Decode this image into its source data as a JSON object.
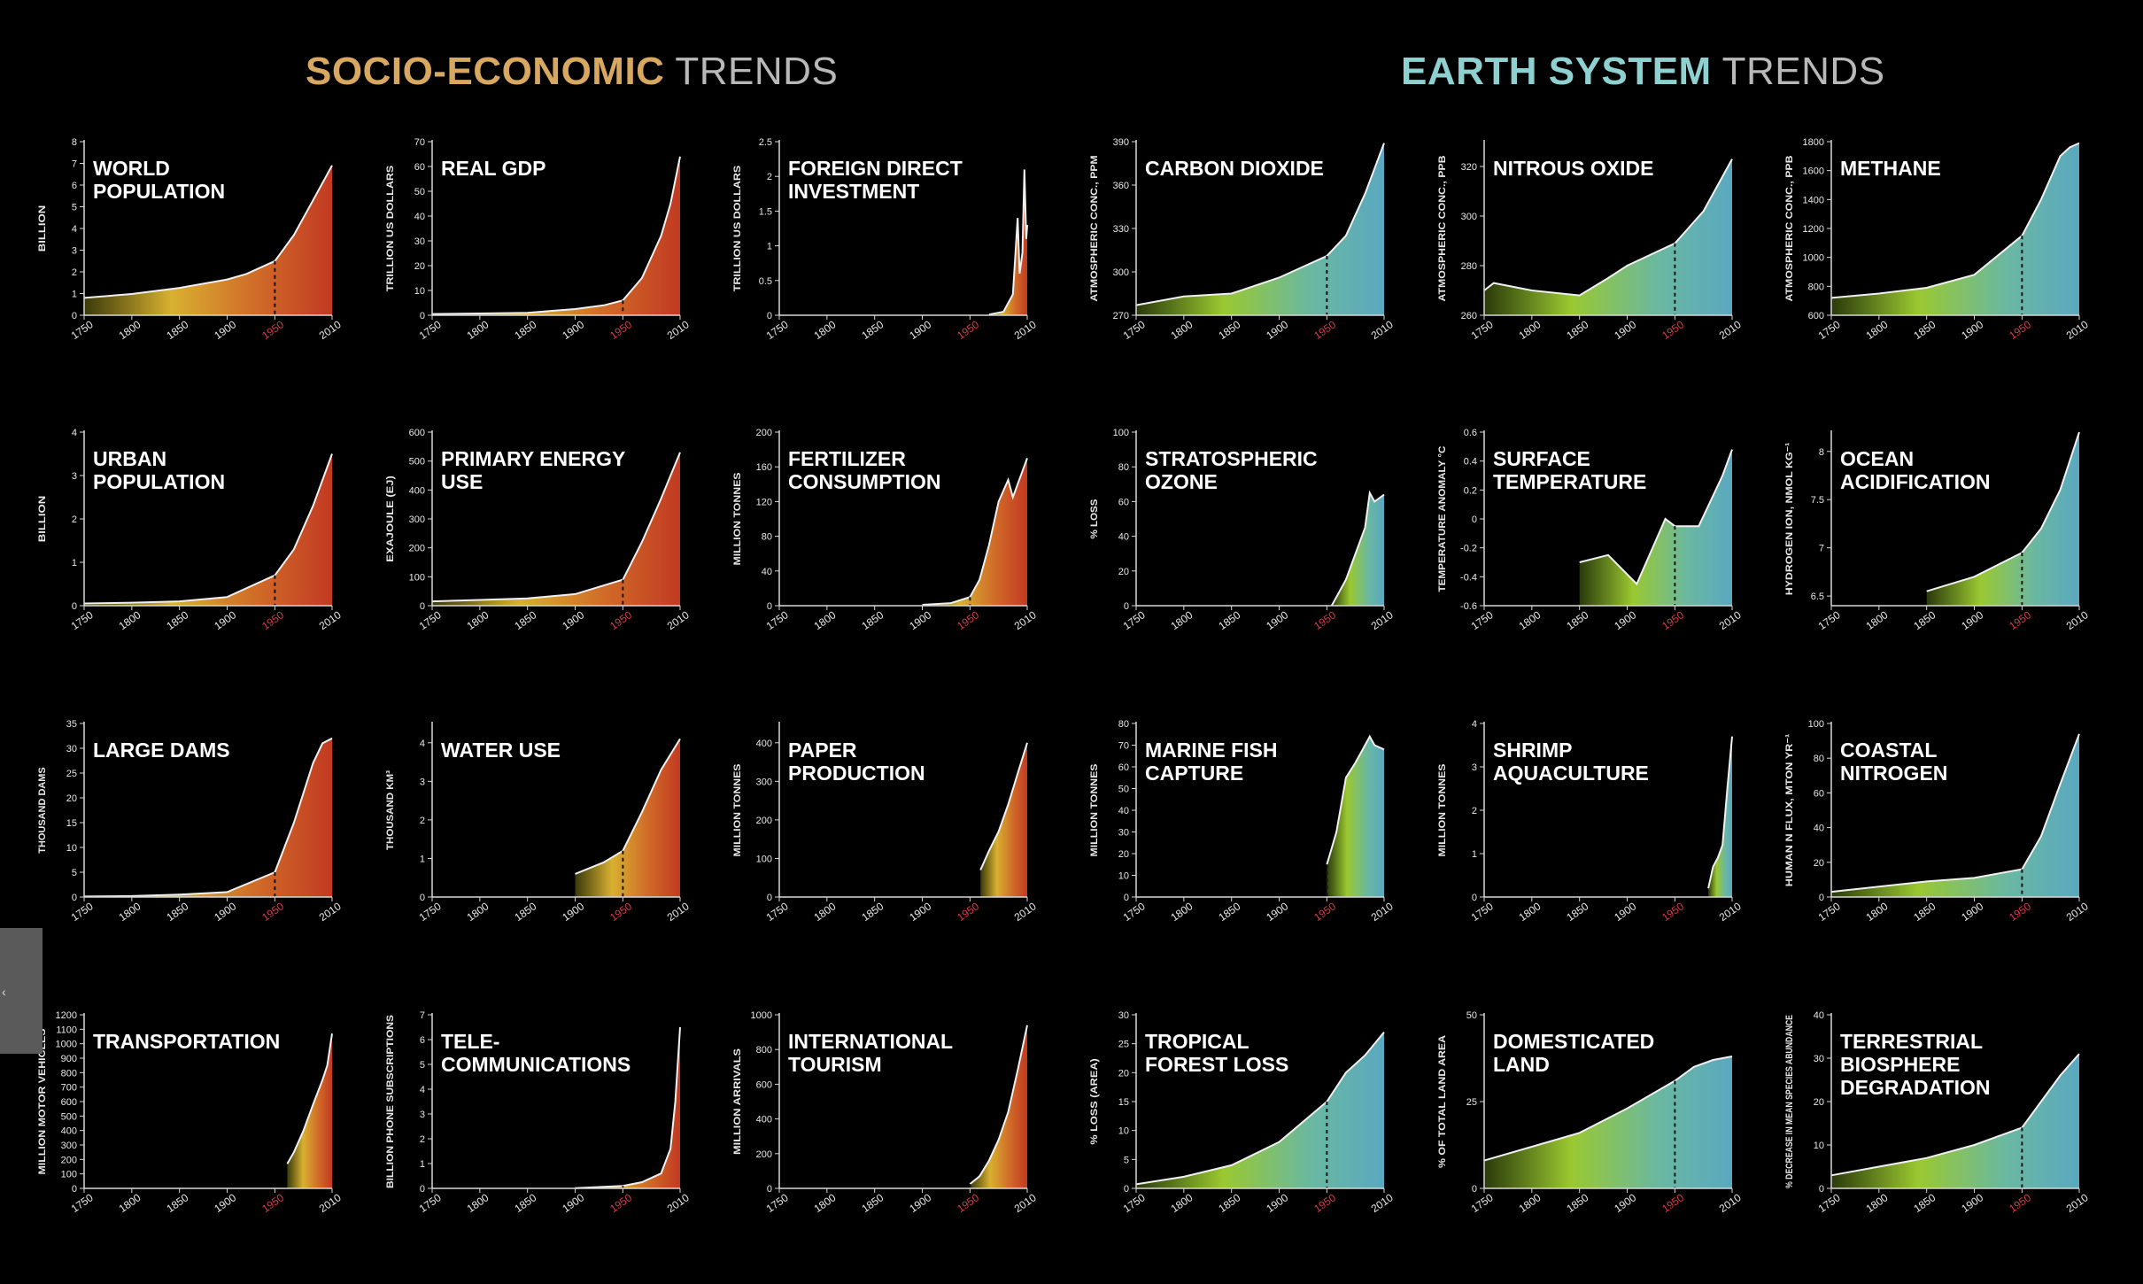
{
  "headings": {
    "left": {
      "bold": "SOCIO-ECONOMIC",
      "light": "TRENDS",
      "color": "#d9a860"
    },
    "right": {
      "bold": "EARTH SYSTEM",
      "light": "TRENDS",
      "color": "#8fd0d0"
    }
  },
  "palette": {
    "socio": [
      "#3a3a0a",
      "#d8b030",
      "#d06a28",
      "#c23a22"
    ],
    "earth": [
      "#2a3a0a",
      "#9ac830",
      "#6ab8a0",
      "#5aa8c0"
    ],
    "marker_year_color": "#d83a4a",
    "axis_color": "#d8d8d8"
  },
  "chart_data": [
    {
      "type": "area",
      "title": "WORLD POPULATION",
      "ylabel": "BILLION",
      "ylim": [
        0,
        8
      ],
      "yticks": [
        0,
        1,
        2,
        3,
        4,
        5,
        6,
        7,
        8
      ],
      "xticks": [
        "1750",
        "1800",
        "1850",
        "1900",
        "1950",
        "2010"
      ],
      "highlight_year": "1950",
      "group": "socio",
      "x": [
        1750,
        1800,
        1850,
        1900,
        1920,
        1950,
        1970,
        1990,
        2010
      ],
      "y": [
        0.8,
        0.98,
        1.26,
        1.65,
        1.9,
        2.5,
        3.7,
        5.3,
        6.9
      ]
    },
    {
      "type": "area",
      "title": "REAL GDP",
      "ylabel": "TRILLION US DOLLARS",
      "ylim": [
        0,
        70
      ],
      "yticks": [
        0,
        10,
        20,
        30,
        40,
        50,
        60,
        70
      ],
      "xticks": [
        "1750",
        "1800",
        "1850",
        "1900",
        "1950",
        "2010"
      ],
      "highlight_year": "1950",
      "group": "socio",
      "x": [
        1750,
        1800,
        1850,
        1900,
        1930,
        1950,
        1970,
        1990,
        2000,
        2010
      ],
      "y": [
        0.5,
        0.7,
        1,
        2.5,
        4,
        6,
        15,
        32,
        45,
        64
      ]
    },
    {
      "type": "area",
      "title": "FOREIGN DIRECT INVESTMENT",
      "ylabel": "TRILLION US DOLLARS",
      "ylim": [
        0,
        2.5
      ],
      "yticks": [
        0,
        0.5,
        1.0,
        1.5,
        2.0,
        2.5
      ],
      "xticks": [
        "1750",
        "1800",
        "1850",
        "1900",
        "1950",
        "2010"
      ],
      "highlight_year": "1950",
      "group": "socio",
      "x": [
        1970,
        1985,
        1995,
        2000,
        2002,
        2005,
        2007,
        2009,
        2010
      ],
      "y": [
        0.01,
        0.05,
        0.3,
        1.4,
        0.6,
        0.9,
        2.1,
        1.1,
        1.3
      ]
    },
    {
      "type": "area",
      "title": "CARBON DIOXIDE",
      "ylabel": "ATMOSPHERIC CONC., PPM",
      "ylim": [
        270,
        390
      ],
      "yticks": [
        270,
        300,
        330,
        360,
        390
      ],
      "xticks": [
        "1750",
        "1800",
        "1850",
        "1900",
        "1950",
        "2010"
      ],
      "highlight_year": "1950",
      "group": "earth",
      "x": [
        1750,
        1800,
        1850,
        1900,
        1950,
        1970,
        1990,
        2010
      ],
      "y": [
        277,
        283,
        285,
        296,
        311,
        325,
        354,
        389
      ]
    },
    {
      "type": "area",
      "title": "NITROUS OXIDE",
      "ylabel": "ATMOSPHERIC CONC., PPB",
      "ylim": [
        260,
        330
      ],
      "yticks": [
        260,
        280,
        300,
        320
      ],
      "xticks": [
        "1750",
        "1800",
        "1850",
        "1900",
        "1950",
        "2010"
      ],
      "highlight_year": "1950",
      "group": "earth",
      "x": [
        1750,
        1760,
        1800,
        1850,
        1880,
        1900,
        1950,
        1980,
        2010
      ],
      "y": [
        270,
        273,
        270,
        268,
        275,
        280,
        289,
        302,
        323
      ]
    },
    {
      "type": "area",
      "title": "METHANE",
      "ylabel": "ATMOSPHERIC CONC., PPB",
      "ylim": [
        600,
        1800
      ],
      "yticks": [
        600,
        800,
        1000,
        1200,
        1400,
        1600,
        1800
      ],
      "xticks": [
        "1750",
        "1800",
        "1850",
        "1900",
        "1950",
        "2010"
      ],
      "highlight_year": "1950",
      "group": "earth",
      "x": [
        1750,
        1800,
        1850,
        1900,
        1950,
        1970,
        1990,
        2000,
        2010
      ],
      "y": [
        720,
        750,
        790,
        880,
        1150,
        1400,
        1700,
        1760,
        1790
      ]
    },
    {
      "type": "area",
      "title": "URBAN POPULATION",
      "ylabel": "BILLION",
      "ylim": [
        0,
        4
      ],
      "yticks": [
        0,
        1,
        2,
        3,
        4
      ],
      "xticks": [
        "1750",
        "1800",
        "1850",
        "1900",
        "1950",
        "2010"
      ],
      "highlight_year": "1950",
      "group": "socio",
      "x": [
        1750,
        1800,
        1850,
        1900,
        1950,
        1970,
        1990,
        2010
      ],
      "y": [
        0.05,
        0.07,
        0.1,
        0.2,
        0.7,
        1.3,
        2.3,
        3.5
      ]
    },
    {
      "type": "area",
      "title": "PRIMARY ENERGY USE",
      "ylabel": "EXAJOULE (EJ)",
      "ylim": [
        0,
        600
      ],
      "yticks": [
        0,
        100,
        200,
        300,
        400,
        500,
        600
      ],
      "xticks": [
        "1750",
        "1800",
        "1850",
        "1900",
        "1950",
        "2010"
      ],
      "highlight_year": "1950",
      "group": "socio",
      "x": [
        1750,
        1800,
        1850,
        1900,
        1950,
        1970,
        1990,
        2010
      ],
      "y": [
        15,
        20,
        25,
        40,
        90,
        220,
        370,
        530
      ]
    },
    {
      "type": "area",
      "title": "FERTILIZER CONSUMPTION",
      "ylabel": "MILLION TONNES",
      "ylim": [
        0,
        200
      ],
      "yticks": [
        0,
        40,
        80,
        120,
        160,
        200
      ],
      "xticks": [
        "1750",
        "1800",
        "1850",
        "1900",
        "1950",
        "2010"
      ],
      "highlight_year": "1950",
      "group": "socio",
      "x": [
        1900,
        1930,
        1950,
        1960,
        1970,
        1980,
        1990,
        1995,
        2000,
        2010
      ],
      "y": [
        1,
        3,
        10,
        30,
        70,
        120,
        145,
        125,
        140,
        170
      ]
    },
    {
      "type": "area",
      "title": "STRATOSPHERIC OZONE",
      "ylabel": "% LOSS",
      "ylim": [
        0,
        100
      ],
      "yticks": [
        0,
        20,
        40,
        60,
        80,
        100
      ],
      "xticks": [
        "1750",
        "1800",
        "1850",
        "1900",
        "1950",
        "2010"
      ],
      "highlight_year": "1950",
      "group": "earth",
      "x": [
        1955,
        1960,
        1970,
        1980,
        1990,
        1995,
        2000,
        2005,
        2010
      ],
      "y": [
        0,
        5,
        15,
        30,
        45,
        65,
        60,
        62,
        64
      ]
    },
    {
      "type": "area",
      "title": "SURFACE TEMPERATURE",
      "ylabel": "TEMPERATURE ANOMALY °C",
      "ylim": [
        -0.6,
        0.6
      ],
      "yticks": [
        -0.6,
        -0.4,
        -0.2,
        0,
        0.2,
        0.4,
        0.6
      ],
      "xticks": [
        "1750",
        "1800",
        "1850",
        "1900",
        "1950",
        "2010"
      ],
      "highlight_year": "1950",
      "group": "earth",
      "x": [
        1850,
        1880,
        1910,
        1940,
        1950,
        1975,
        2000,
        2010
      ],
      "y": [
        -0.3,
        -0.25,
        -0.45,
        0.0,
        -0.05,
        -0.05,
        0.3,
        0.48
      ]
    },
    {
      "type": "area",
      "title": "OCEAN ACIDIFICATION",
      "ylabel": "HYDROGEN ION, NMOL KG⁻¹",
      "ylim": [
        6.4,
        8.2
      ],
      "yticks": [
        6.5,
        7.0,
        7.5,
        8.0
      ],
      "xticks": [
        "1750",
        "1800",
        "1850",
        "1900",
        "1950",
        "2010"
      ],
      "highlight_year": "1950",
      "group": "earth",
      "x": [
        1850,
        1900,
        1950,
        1970,
        1990,
        2010
      ],
      "y": [
        6.55,
        6.7,
        6.95,
        7.2,
        7.6,
        8.2
      ]
    },
    {
      "type": "area",
      "title": "LARGE DAMS",
      "ylabel": "THOUSAND DAMS",
      "ylim": [
        0,
        35
      ],
      "yticks": [
        0,
        5,
        10,
        15,
        20,
        25,
        30,
        35
      ],
      "xticks": [
        "1750",
        "1800",
        "1850",
        "1900",
        "1950",
        "2010"
      ],
      "highlight_year": "1950",
      "group": "socio",
      "x": [
        1750,
        1800,
        1850,
        1900,
        1950,
        1970,
        1990,
        2000,
        2010
      ],
      "y": [
        0.1,
        0.2,
        0.5,
        1,
        5,
        15,
        27,
        31,
        32
      ]
    },
    {
      "type": "area",
      "title": "WATER USE",
      "ylabel": "THOUSAND KM³",
      "ylim": [
        0,
        4.5
      ],
      "yticks": [
        0,
        1,
        2,
        3,
        4
      ],
      "xticks": [
        "1750",
        "1800",
        "1850",
        "1900",
        "1950",
        "2010"
      ],
      "highlight_year": "1950",
      "group": "socio",
      "x": [
        1900,
        1930,
        1950,
        1970,
        1990,
        2010
      ],
      "y": [
        0.6,
        0.9,
        1.2,
        2.2,
        3.3,
        4.1
      ]
    },
    {
      "type": "area",
      "title": "PAPER PRODUCTION",
      "ylabel": "MILLION TONNES",
      "ylim": [
        0,
        450
      ],
      "yticks": [
        0,
        100,
        200,
        300,
        400
      ],
      "xticks": [
        "1750",
        "1800",
        "1850",
        "1900",
        "1950",
        "2010"
      ],
      "highlight_year": "1950",
      "group": "socio",
      "x": [
        1961,
        1970,
        1980,
        1990,
        2000,
        2010
      ],
      "y": [
        70,
        120,
        170,
        240,
        320,
        400
      ]
    },
    {
      "type": "area",
      "title": "MARINE FISH CAPTURE",
      "ylabel": "MILLION TONNES",
      "ylim": [
        0,
        80
      ],
      "yticks": [
        0,
        10,
        20,
        30,
        40,
        50,
        60,
        70,
        80
      ],
      "xticks": [
        "1750",
        "1800",
        "1850",
        "1900",
        "1950",
        "2010"
      ],
      "highlight_year": "1950",
      "group": "earth",
      "x": [
        1950,
        1960,
        1970,
        1980,
        1990,
        1995,
        2000,
        2010
      ],
      "y": [
        15,
        30,
        55,
        62,
        70,
        74,
        70,
        68
      ]
    },
    {
      "type": "area",
      "title": "SHRIMP AQUACULTURE",
      "ylabel": "MILLION TONNES",
      "ylim": [
        0,
        4
      ],
      "yticks": [
        0,
        1,
        2,
        3,
        4
      ],
      "xticks": [
        "1750",
        "1800",
        "1850",
        "1900",
        "1950",
        "2010"
      ],
      "highlight_year": "1950",
      "group": "earth",
      "x": [
        1985,
        1990,
        1995,
        2000,
        2005,
        2010
      ],
      "y": [
        0.2,
        0.7,
        0.9,
        1.2,
        2.5,
        3.7
      ]
    },
    {
      "type": "area",
      "title": "COASTAL NITROGEN",
      "ylabel": "HUMAN N FLUX, MTON YR⁻¹",
      "ylim": [
        0,
        100
      ],
      "yticks": [
        0,
        20,
        40,
        60,
        80,
        100
      ],
      "xticks": [
        "1750",
        "1800",
        "1850",
        "1900",
        "1950",
        "2010"
      ],
      "highlight_year": "1950",
      "group": "earth",
      "x": [
        1750,
        1800,
        1850,
        1900,
        1950,
        1970,
        1990,
        2010
      ],
      "y": [
        3,
        6,
        9,
        11,
        16,
        35,
        65,
        94
      ]
    },
    {
      "type": "area",
      "title": "TRANSPORTATION",
      "ylabel": "MILLION MOTOR VEHICLES",
      "ylim": [
        0,
        1200
      ],
      "yticks": [
        0,
        100,
        200,
        300,
        400,
        500,
        600,
        700,
        800,
        900,
        1000,
        1100,
        1200
      ],
      "xticks": [
        "1750",
        "1800",
        "1850",
        "1900",
        "1950",
        "2010"
      ],
      "highlight_year": "1950",
      "group": "socio",
      "x": [
        1963,
        1970,
        1980,
        1990,
        2000,
        2005,
        2010
      ],
      "y": [
        170,
        250,
        400,
        580,
        750,
        850,
        1070
      ]
    },
    {
      "type": "area",
      "title": "TELE- COMMUNICATIONS",
      "ylabel": "BILLION PHONE SUBSCRIPTIONS",
      "ylim": [
        0,
        7
      ],
      "yticks": [
        0,
        1,
        2,
        3,
        4,
        5,
        6,
        7
      ],
      "xticks": [
        "1750",
        "1800",
        "1850",
        "1900",
        "1950",
        "2010"
      ],
      "highlight_year": "1950",
      "group": "socio",
      "x": [
        1900,
        1950,
        1970,
        1990,
        2000,
        2005,
        2010
      ],
      "y": [
        0.01,
        0.1,
        0.25,
        0.6,
        1.6,
        3.5,
        6.5
      ]
    },
    {
      "type": "area",
      "title": "INTERNATIONAL TOURISM",
      "ylabel": "MILLION ARRIVALS",
      "ylim": [
        0,
        1000
      ],
      "yticks": [
        0,
        200,
        400,
        600,
        800,
        1000
      ],
      "xticks": [
        "1750",
        "1800",
        "1850",
        "1900",
        "1950",
        "2010"
      ],
      "highlight_year": "1950",
      "group": "socio",
      "x": [
        1950,
        1960,
        1970,
        1980,
        1990,
        2000,
        2010
      ],
      "y": [
        25,
        70,
        160,
        280,
        440,
        680,
        940
      ]
    },
    {
      "type": "area",
      "title": "TROPICAL FOREST LOSS",
      "ylabel": "% LOSS (AREA)",
      "ylim": [
        0,
        30
      ],
      "yticks": [
        0,
        5,
        10,
        15,
        20,
        25,
        30
      ],
      "xticks": [
        "1750",
        "1800",
        "1850",
        "1900",
        "1950",
        "2010"
      ],
      "highlight_year": "1950",
      "group": "earth",
      "x": [
        1750,
        1800,
        1850,
        1900,
        1950,
        1970,
        1990,
        2010
      ],
      "y": [
        0.7,
        2,
        4,
        8,
        15,
        20,
        23,
        27
      ]
    },
    {
      "type": "area",
      "title": "DOMESTICATED LAND",
      "ylabel": "% OF TOTAL LAND AREA",
      "ylim": [
        0,
        50
      ],
      "yticks": [
        0,
        25,
        50
      ],
      "xticks": [
        "1750",
        "1800",
        "1850",
        "1900",
        "1950",
        "2010"
      ],
      "highlight_year": "1950",
      "group": "earth",
      "x": [
        1750,
        1800,
        1850,
        1900,
        1950,
        1970,
        1990,
        2010
      ],
      "y": [
        8,
        12,
        16,
        23,
        31,
        35,
        37,
        38
      ]
    },
    {
      "type": "area",
      "title": "TERRESTRIAL BIOSPHERE DEGRADATION",
      "ylabel": "% DECREASE IN MEAN SPECIES ABUNDANCE",
      "ylim": [
        0,
        40
      ],
      "yticks": [
        0,
        10,
        20,
        30,
        40
      ],
      "xticks": [
        "1750",
        "1800",
        "1850",
        "1900",
        "1950",
        "2010"
      ],
      "highlight_year": "1950",
      "group": "earth",
      "x": [
        1750,
        1800,
        1850,
        1900,
        1950,
        1970,
        1990,
        2010
      ],
      "y": [
        3,
        5,
        7,
        10,
        14,
        20,
        26,
        31
      ]
    }
  ]
}
